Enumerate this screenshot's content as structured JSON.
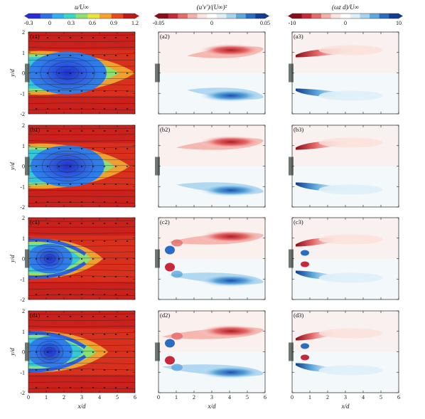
{
  "figure": {
    "colorbars": [
      {
        "label": "u/U∞",
        "ticks": [
          "-0.3",
          "0",
          "0.3",
          "0.6",
          "0.9",
          "1.2"
        ],
        "colors": [
          "#2a2ad8",
          "#2f6fe8",
          "#2fb0f0",
          "#37d8c8",
          "#8ee070",
          "#e6e63a",
          "#f7a52a",
          "#e84a1e",
          "#c0171b"
        ]
      },
      {
        "label": "(u′v′)/(U∞)²",
        "ticks": [
          "-0.05",
          "0",
          "0.05"
        ],
        "colors": [
          "#8c0d1a",
          "#c8283a",
          "#e56a6a",
          "#f4b0a8",
          "#fbe6e2",
          "#ffffff",
          "#dff0f8",
          "#a8d4ee",
          "#5ea8dc",
          "#2a6cc2",
          "#103c94"
        ]
      },
      {
        "label": "(ωz d)/U∞",
        "ticks": [
          "-10",
          "0",
          "10"
        ],
        "colors": [
          "#8c0d1a",
          "#c8283a",
          "#e56a6a",
          "#f4b0a8",
          "#fbe6e2",
          "#ffffff",
          "#dff0f8",
          "#a8d4ee",
          "#5ea8dc",
          "#2a6cc2",
          "#103c94"
        ]
      }
    ],
    "panel_labels": [
      [
        "(a1)",
        "(a2)",
        "(a3)"
      ],
      [
        "(b1)",
        "(b2)",
        "(b3)"
      ],
      [
        "(c1)",
        "(c2)",
        "(c3)"
      ],
      [
        "(d1)",
        "(d2)",
        "(d3)"
      ]
    ],
    "x_ticks": [
      "0",
      "1",
      "2",
      "3",
      "4",
      "5",
      "6"
    ],
    "y_ticks": [
      "2",
      "1",
      "0",
      "-1",
      "-2"
    ],
    "x_label": "x/d",
    "y_label": "y/d"
  }
}
